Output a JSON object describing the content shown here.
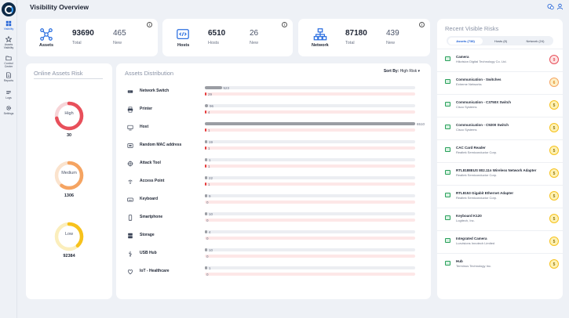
{
  "page": {
    "title": "Visibility Overview"
  },
  "sidebar": {
    "items": [
      {
        "label": "Visibility",
        "icon": "grid-icon",
        "active": true
      },
      {
        "label": "Assets Visibility",
        "icon": "star-icon"
      },
      {
        "label": "Control Center",
        "icon": "folder-icon"
      },
      {
        "label": "Reports",
        "icon": "document-icon"
      },
      {
        "label": "Logs",
        "icon": "list-icon"
      },
      {
        "label": "Settings",
        "icon": "gear-icon"
      }
    ]
  },
  "stats": [
    {
      "label": "Assets",
      "icon": "assets-network-icon",
      "total": "93690",
      "total_label": "Total",
      "new": "465",
      "new_label": "New"
    },
    {
      "label": "Hosts",
      "icon": "host-code-icon",
      "total": "6510",
      "total_label": "Hosts",
      "new": "26",
      "new_label": "New"
    },
    {
      "label": "Network",
      "icon": "network-topology-icon",
      "total": "87180",
      "total_label": "Total",
      "new": "439",
      "new_label": "New"
    }
  ],
  "risk": {
    "title": "Online Assets Risk",
    "levels": [
      {
        "label": "High",
        "value": "30",
        "color": "#e8505b",
        "track": "#f7d5d8",
        "fraction": 0.72
      },
      {
        "label": "Medium",
        "value": "1306",
        "color": "#f5a462",
        "track": "#fbe3cd",
        "fraction": 0.6
      },
      {
        "label": "Low",
        "value": "92384",
        "color": "#f7c21c",
        "track": "#fbeebc",
        "fraction": 0.38
      }
    ]
  },
  "distribution": {
    "title": "Assets Distribution",
    "sort_label": "Sort By:",
    "sort_value": "High Risk",
    "max": 6510,
    "rows": [
      {
        "name": "Network Switch",
        "icon": "switch-icon",
        "total": 523,
        "risk": 29,
        "total_label": "523",
        "risk_label": "29"
      },
      {
        "name": "Printer",
        "icon": "printer-icon",
        "total": 96,
        "risk": 4,
        "total_label": "96",
        "risk_label": "4"
      },
      {
        "name": "Host",
        "icon": "monitor-icon",
        "total": 6510,
        "risk": 1,
        "total_label": "6510",
        "risk_label": "1"
      },
      {
        "name": "Random MAC address",
        "icon": "mac-address-icon",
        "total": 19,
        "risk": 1,
        "total_label": "19",
        "risk_label": "1"
      },
      {
        "name": "Attack Tool",
        "icon": "attack-tool-icon",
        "total": 1,
        "risk": 1,
        "total_label": "1",
        "risk_label": "1"
      },
      {
        "name": "Access Point",
        "icon": "access-point-icon",
        "total": 22,
        "risk": 1,
        "total_label": "22",
        "risk_label": "1"
      },
      {
        "name": "Keyboard",
        "icon": "keyboard-icon",
        "total": 9,
        "risk": 0,
        "total_label": "9",
        "risk_label": "0"
      },
      {
        "name": "Smartphone",
        "icon": "smartphone-icon",
        "total": 10,
        "risk": 0,
        "total_label": "10",
        "risk_label": "0"
      },
      {
        "name": "Storage",
        "icon": "storage-icon",
        "total": 4,
        "risk": 0,
        "total_label": "4",
        "risk_label": "0"
      },
      {
        "name": "USB Hub",
        "icon": "usb-icon",
        "total": 10,
        "risk": 0,
        "total_label": "10",
        "risk_label": "0"
      },
      {
        "name": "IoT - Healthcare",
        "icon": "healthcare-icon",
        "total": 1,
        "risk": 0,
        "total_label": "1",
        "risk_label": "0"
      }
    ]
  },
  "recent": {
    "title": "Recent Visible Risks",
    "tabs": [
      {
        "label": "Assets (738)",
        "active": true
      },
      {
        "label": "Hosts (8)"
      },
      {
        "label": "Network (24)"
      }
    ],
    "items": [
      {
        "name": "Camera",
        "vendor": "Hikvision Digital Technology Co. Ltd.",
        "score": "9",
        "level": "high"
      },
      {
        "name": "Communication - Switches",
        "vendor": "Extreme Networks",
        "score": "6",
        "level": "medium"
      },
      {
        "name": "Communication - C3750X Switch",
        "vendor": "Cisco Systems",
        "score": "5",
        "level": "low"
      },
      {
        "name": "Communication - C9200 Switch",
        "vendor": "Cisco Systems",
        "score": "5",
        "level": "low"
      },
      {
        "name": "CAC Card Reader",
        "vendor": "Realtek Semiconductor Corp.",
        "score": "5",
        "level": "low"
      },
      {
        "name": "RTL8188EUS 802.11n Wireless Network Adapter",
        "vendor": "Realtek Semiconductor Corp.",
        "score": "5",
        "level": "low"
      },
      {
        "name": "RTL8153 Gigabit Ethernet Adapter",
        "vendor": "Realtek Semiconductor Corp.",
        "score": "5",
        "level": "low"
      },
      {
        "name": "Keyboard K120",
        "vendor": "Logitech, Inc.",
        "score": "5",
        "level": "low"
      },
      {
        "name": "Integrated Camera",
        "vendor": "Luxvisions Innotech Limited",
        "score": "5",
        "level": "low"
      },
      {
        "name": "Hub",
        "vendor": "Terminus Technology Inc.",
        "score": "5",
        "level": "low"
      }
    ]
  },
  "colors": {
    "accent": "#1d5fd6",
    "icon_blue": "#2b6fe0",
    "high": "#e8505b",
    "medium": "#f5a462",
    "low": "#f7c21c"
  }
}
